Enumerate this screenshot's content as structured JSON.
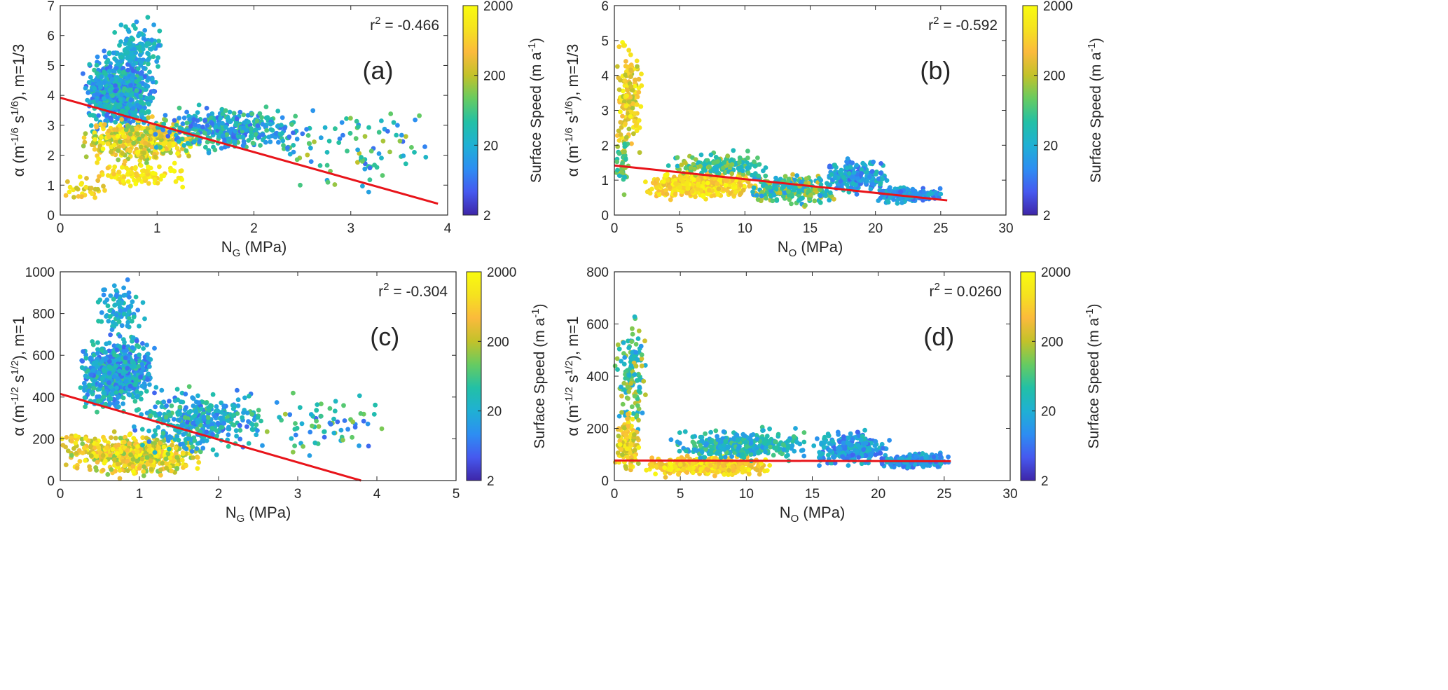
{
  "figure": {
    "colorbar": {
      "label": "Surface Speed (m a",
      "label_sup": "-1",
      "label_close": ")",
      "ticks": [
        "2",
        "20",
        "200",
        "2000"
      ],
      "tick_values": [
        2,
        20,
        200,
        2000
      ],
      "scale": "log",
      "colormap": [
        "#3e26a8",
        "#4659ef",
        "#2d8ef2",
        "#1fb0d4",
        "#22c0a6",
        "#67cb61",
        "#c2c22a",
        "#fbba3c",
        "#f5e21f",
        "#f9fb0e"
      ]
    }
  },
  "chart_data": [
    {
      "type": "scatter",
      "panel_label": "(a)",
      "annotation": {
        "base": "r",
        "sup": "2",
        "rest": " = -0.466"
      },
      "ylabel": {
        "prefix": "α (m",
        "sup1": "-1/6",
        "mid": " s",
        "sup2": "1/6",
        "suffix": "), m=1/3"
      },
      "xlabel": {
        "main": "N",
        "sub": "G",
        "rest": " (MPa)"
      },
      "xlim": [
        0,
        4
      ],
      "ylim": [
        0,
        7
      ],
      "xticks": [
        0,
        1,
        2,
        3,
        4
      ],
      "yticks": [
        0,
        1,
        2,
        3,
        4,
        5,
        6,
        7
      ],
      "fit_line": {
        "color": "#e8141a",
        "x": [
          0,
          3.9
        ],
        "y": [
          3.92,
          0.38
        ]
      },
      "clusters": [
        {
          "x": [
            0.22,
            1.0
          ],
          "y": [
            2.5,
            5.7
          ],
          "speed": [
            5,
            60
          ],
          "n": 700
        },
        {
          "x": [
            0.5,
            1.1
          ],
          "y": [
            4.5,
            6.7
          ],
          "speed": [
            8,
            50
          ],
          "n": 120
        },
        {
          "x": [
            0.2,
            1.5
          ],
          "y": [
            1.6,
            3.4
          ],
          "speed": [
            100,
            2000
          ],
          "n": 420
        },
        {
          "x": [
            0.3,
            1.3
          ],
          "y": [
            0.8,
            1.9
          ],
          "speed": [
            500,
            2000
          ],
          "n": 100
        },
        {
          "x": [
            0.0,
            0.5
          ],
          "y": [
            0.1,
            1.6
          ],
          "speed": [
            200,
            1500
          ],
          "n": 30
        },
        {
          "x": [
            0.9,
            2.6
          ],
          "y": [
            1.9,
            3.8
          ],
          "speed": [
            5,
            80
          ],
          "n": 380
        },
        {
          "x": [
            2.2,
            3.9
          ],
          "y": [
            0.6,
            3.8
          ],
          "speed": [
            5,
            200
          ],
          "n": 90
        }
      ]
    },
    {
      "type": "scatter",
      "panel_label": "(b)",
      "annotation": {
        "base": "r",
        "sup": "2",
        "rest": " = -0.592"
      },
      "ylabel": {
        "prefix": "α (m",
        "sup1": "-1/6",
        "mid": " s",
        "sup2": "1/6",
        "suffix": "), m=1/3"
      },
      "xlabel": {
        "main": "N",
        "sub": "O",
        "rest": " (MPa)"
      },
      "xlim": [
        0,
        30
      ],
      "ylim": [
        0,
        6
      ],
      "xticks": [
        0,
        5,
        10,
        15,
        20,
        25,
        30
      ],
      "yticks": [
        0,
        1,
        2,
        3,
        4,
        5,
        6
      ],
      "fit_line": {
        "color": "#e8141a",
        "x": [
          0,
          25.5
        ],
        "y": [
          1.42,
          0.42
        ]
      },
      "clusters": [
        {
          "x": [
            0.0,
            2.2
          ],
          "y": [
            1.5,
            5.4
          ],
          "speed": [
            150,
            2000
          ],
          "n": 160
        },
        {
          "x": [
            2.0,
            11.0
          ],
          "y": [
            0.4,
            1.3
          ],
          "speed": [
            300,
            2000
          ],
          "n": 420
        },
        {
          "x": [
            4.0,
            12.0
          ],
          "y": [
            1.0,
            1.9
          ],
          "speed": [
            20,
            200
          ],
          "n": 160
        },
        {
          "x": [
            10.0,
            17.0
          ],
          "y": [
            0.2,
            1.3
          ],
          "speed": [
            10,
            300
          ],
          "n": 260
        },
        {
          "x": [
            16.0,
            21.0
          ],
          "y": [
            0.5,
            1.7
          ],
          "speed": [
            5,
            40
          ],
          "n": 220
        },
        {
          "x": [
            20.0,
            25.5
          ],
          "y": [
            0.3,
            0.85
          ],
          "speed": [
            5,
            30
          ],
          "n": 200
        },
        {
          "x": [
            0.0,
            1.2
          ],
          "y": [
            0.3,
            2.5
          ],
          "speed": [
            20,
            200
          ],
          "n": 40
        }
      ]
    },
    {
      "type": "scatter",
      "panel_label": "(c)",
      "annotation": {
        "base": "r",
        "sup": "2",
        "rest": " = -0.304"
      },
      "ylabel": {
        "prefix": "α (m",
        "sup1": "-1/2",
        "mid": " s",
        "sup2": "1/2",
        "suffix": "), m=1"
      },
      "xlabel": {
        "main": "N",
        "sub": "G",
        "rest": " (MPa)"
      },
      "xlim": [
        0,
        5
      ],
      "ylim": [
        0,
        1000
      ],
      "xticks": [
        0,
        1,
        2,
        3,
        4,
        5
      ],
      "yticks": [
        0,
        200,
        400,
        600,
        800,
        1000
      ],
      "fit_line": {
        "color": "#e8141a",
        "x": [
          0,
          3.8
        ],
        "y": [
          415,
          0
        ]
      },
      "clusters": [
        {
          "x": [
            0.22,
            1.2
          ],
          "y": [
            300,
            720
          ],
          "speed": [
            5,
            60
          ],
          "n": 700
        },
        {
          "x": [
            0.4,
            1.1
          ],
          "y": [
            650,
            990
          ],
          "speed": [
            8,
            50
          ],
          "n": 90
        },
        {
          "x": [
            0.2,
            1.8
          ],
          "y": [
            0,
            250
          ],
          "speed": [
            100,
            2000
          ],
          "n": 500
        },
        {
          "x": [
            0.9,
            2.6
          ],
          "y": [
            100,
            480
          ],
          "speed": [
            5,
            80
          ],
          "n": 380
        },
        {
          "x": [
            2.4,
            4.1
          ],
          "y": [
            80,
            460
          ],
          "speed": [
            5,
            200
          ],
          "n": 70
        },
        {
          "x": [
            0.0,
            0.4
          ],
          "y": [
            0,
            320
          ],
          "speed": [
            100,
            1500
          ],
          "n": 40
        }
      ]
    },
    {
      "type": "scatter",
      "panel_label": "(d)",
      "annotation": {
        "base": "r",
        "sup": "2",
        "rest": " = 0.0260"
      },
      "ylabel": {
        "prefix": "α (m",
        "sup1": "-1/2",
        "mid": " s",
        "sup2": "1/2",
        "suffix": "), m=1"
      },
      "xlabel": {
        "main": "N",
        "sub": "O",
        "rest": " (MPa)"
      },
      "xlim": [
        0,
        30
      ],
      "ylim": [
        0,
        800
      ],
      "xticks": [
        0,
        5,
        10,
        15,
        20,
        25,
        30
      ],
      "yticks": [
        0,
        200,
        400,
        600,
        800
      ],
      "fit_line": {
        "color": "#e8141a",
        "x": [
          0,
          25.5
        ],
        "y": [
          77,
          74
        ]
      },
      "clusters": [
        {
          "x": [
            0.0,
            2.5
          ],
          "y": [
            100,
            700
          ],
          "speed": [
            10,
            300
          ],
          "n": 140
        },
        {
          "x": [
            0.0,
            2.0
          ],
          "y": [
            0,
            280
          ],
          "speed": [
            150,
            2000
          ],
          "n": 120
        },
        {
          "x": [
            2.0,
            12.0
          ],
          "y": [
            10,
            100
          ],
          "speed": [
            300,
            2000
          ],
          "n": 420
        },
        {
          "x": [
            4.0,
            15.0
          ],
          "y": [
            60,
            210
          ],
          "speed": [
            10,
            80
          ],
          "n": 340
        },
        {
          "x": [
            15.0,
            21.0
          ],
          "y": [
            40,
            210
          ],
          "speed": [
            5,
            40
          ],
          "n": 240
        },
        {
          "x": [
            20.0,
            25.5
          ],
          "y": [
            40,
            110
          ],
          "speed": [
            5,
            30
          ],
          "n": 200
        }
      ]
    }
  ]
}
